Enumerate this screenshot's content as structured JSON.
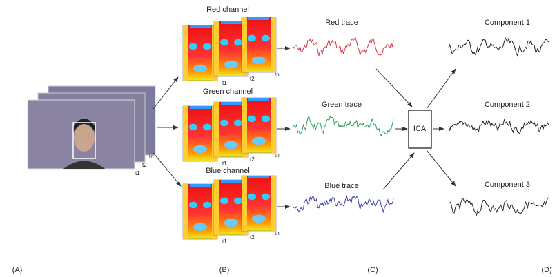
{
  "panels": {
    "input": {
      "frame_labels": [
        "t1",
        "t2",
        "tn"
      ]
    },
    "channels": [
      {
        "title": "Red channel",
        "frame_labels": [
          "t1",
          "t2",
          "tn"
        ]
      },
      {
        "title": "Green channel",
        "frame_labels": [
          "t1",
          "t2",
          "tn"
        ]
      },
      {
        "title": "Blue channel",
        "frame_labels": [
          "t1",
          "t2",
          "tn"
        ]
      }
    ],
    "traces": [
      "Red trace",
      "Green trace",
      "Blue trace"
    ],
    "ica": "ICA",
    "components": [
      "Component 1",
      "Component 2",
      "Component 3"
    ]
  },
  "panel_labels": [
    "(A)",
    "(B)",
    "(C)",
    "(D)"
  ]
}
